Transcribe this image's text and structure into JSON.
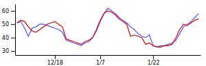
{
  "chart_data": {
    "type": "line",
    "x": [
      0,
      1,
      2,
      3,
      4,
      5,
      6,
      7,
      8,
      9,
      10,
      11,
      12,
      13,
      14,
      15,
      16,
      17,
      18,
      19,
      20,
      21,
      22,
      23,
      24,
      25,
      26,
      27,
      28,
      29,
      30,
      31,
      32,
      33,
      34,
      35,
      36,
      37,
      38,
      39,
      40,
      41,
      42,
      43,
      44,
      45,
      46,
      47,
      48
    ],
    "series": [
      {
        "color": "#5555ff",
        "values": [
          51,
          52,
          47,
          41,
          47,
          48,
          50,
          50,
          49,
          48,
          47,
          46,
          44,
          38,
          37,
          36,
          35,
          34,
          36,
          37,
          40,
          45,
          52,
          58,
          62,
          60,
          58,
          55,
          53,
          51,
          48,
          46,
          43,
          41,
          40,
          42,
          34,
          33,
          34,
          34,
          35,
          36,
          38,
          43,
          48,
          50,
          52,
          55,
          58
        ]
      },
      {
        "color": "#dd0000",
        "values": [
          51,
          53,
          52,
          48,
          45,
          44,
          46,
          48,
          50,
          51,
          52,
          50,
          48,
          39,
          38,
          37,
          36,
          35,
          37,
          38,
          40,
          46,
          53,
          58,
          60,
          59,
          57,
          54,
          52,
          50,
          41,
          42,
          41,
          40,
          35,
          36,
          34,
          33,
          33,
          34,
          34,
          35,
          40,
          46,
          50,
          49,
          51,
          53,
          54
        ]
      }
    ],
    "xlim": [
      -0.5,
      48.5
    ],
    "xticks": [
      {
        "value": 10,
        "label": "12/18"
      },
      {
        "value": 22,
        "label": "1/7"
      },
      {
        "value": 36,
        "label": "1/22"
      }
    ],
    "ylim": [
      27,
      65
    ],
    "yticks": [
      30,
      40,
      50,
      60
    ]
  }
}
